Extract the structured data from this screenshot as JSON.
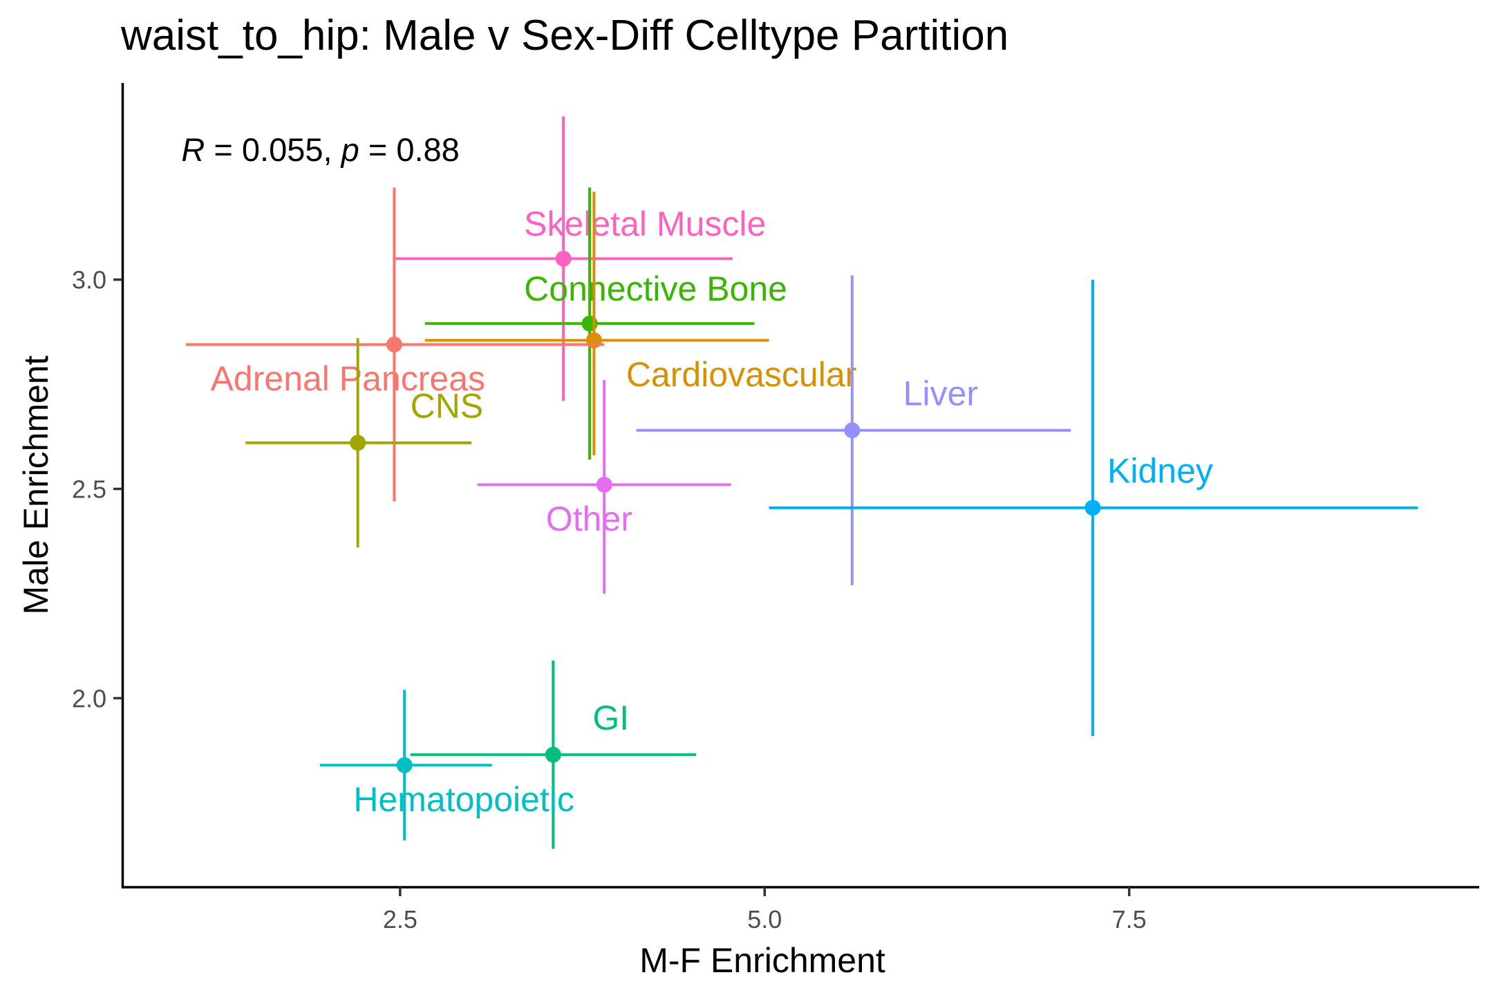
{
  "chart_data": {
    "type": "scatter",
    "title": "waist_to_hip: Male v Sex-Diff Celltype Partition",
    "xlabel": "M-F Enrichment",
    "ylabel": "Male Enrichment",
    "xlim": [
      0.6,
      9.9
    ],
    "ylim": [
      1.55,
      3.47
    ],
    "x_ticks": [
      2.5,
      5.0,
      7.5
    ],
    "x_tick_labels": [
      "2.5",
      "5.0",
      "7.5"
    ],
    "y_ticks": [
      2.0,
      2.5,
      3.0
    ],
    "y_tick_labels": [
      "2.0",
      "2.5",
      "3.0"
    ],
    "grid": false,
    "annotation": {
      "r_label": "R",
      "r_value": " = 0.055, ",
      "p_label": "p",
      "p_value": " = 0.88",
      "x": 1.0,
      "y": 3.31
    },
    "points": [
      {
        "label": "Skeletal Muscle",
        "x": 3.62,
        "y": 3.05,
        "xmin": 2.45,
        "xmax": 4.78,
        "ymin": 2.71,
        "ymax": 3.39,
        "color": "#FF61C3",
        "label_x": 3.35,
        "label_y": 3.105
      },
      {
        "label": "Connective Bone",
        "x": 3.8,
        "y": 2.895,
        "xmin": 2.67,
        "xmax": 4.93,
        "ymin": 2.57,
        "ymax": 3.22,
        "color": "#39B600",
        "label_x": 3.35,
        "label_y": 2.95
      },
      {
        "label": "Cardiovascular",
        "x": 3.83,
        "y": 2.855,
        "xmin": 2.67,
        "xmax": 5.03,
        "ymin": 2.58,
        "ymax": 3.21,
        "color": "#D89000",
        "label_x": 4.05,
        "label_y": 2.745
      },
      {
        "label": "Adrenal Pancreas",
        "x": 2.46,
        "y": 2.845,
        "xmin": 1.03,
        "xmax": 3.9,
        "ymin": 2.47,
        "ymax": 3.22,
        "color": "#F8766D",
        "label_x": 1.2,
        "label_y": 2.735
      },
      {
        "label": "CNS",
        "x": 2.21,
        "y": 2.61,
        "xmin": 1.44,
        "xmax": 2.99,
        "ymin": 2.36,
        "ymax": 2.86,
        "color": "#A3A500",
        "label_x": 2.57,
        "label_y": 2.67
      },
      {
        "label": "Liver",
        "x": 5.6,
        "y": 2.64,
        "xmin": 4.12,
        "xmax": 7.1,
        "ymin": 2.27,
        "ymax": 3.01,
        "color": "#9590FF",
        "label_x": 5.95,
        "label_y": 2.7
      },
      {
        "label": "Other",
        "x": 3.9,
        "y": 2.51,
        "xmin": 3.03,
        "xmax": 4.77,
        "ymin": 2.25,
        "ymax": 2.76,
        "color": "#E76BF3",
        "label_x": 3.5,
        "label_y": 2.4
      },
      {
        "label": "Kidney",
        "x": 7.25,
        "y": 2.455,
        "xmin": 5.03,
        "xmax": 9.48,
        "ymin": 1.91,
        "ymax": 3.0,
        "color": "#00B0F6",
        "label_x": 7.35,
        "label_y": 2.515
      },
      {
        "label": "GI",
        "x": 3.55,
        "y": 1.865,
        "xmin": 2.57,
        "xmax": 4.53,
        "ymin": 1.64,
        "ymax": 2.09,
        "color": "#00BF7D",
        "label_x": 3.82,
        "label_y": 1.925
      },
      {
        "label": "Hematopoietic",
        "x": 2.53,
        "y": 1.84,
        "xmin": 1.95,
        "xmax": 3.13,
        "ymin": 1.66,
        "ymax": 2.02,
        "color": "#00BFC4",
        "label_x": 2.18,
        "label_y": 1.73
      }
    ]
  }
}
